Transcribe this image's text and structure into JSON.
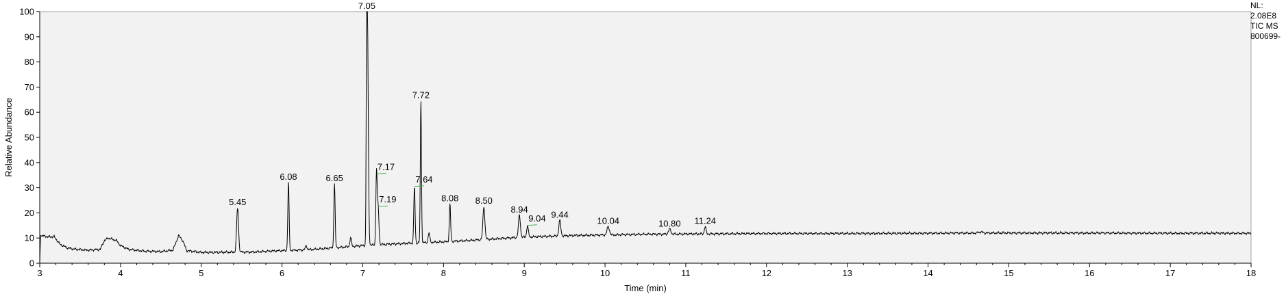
{
  "chart_data": {
    "type": "line",
    "title": "",
    "xlabel": "Time (min)",
    "ylabel": "Relative Abundance",
    "xlim": [
      3,
      18
    ],
    "ylim": [
      0,
      100
    ],
    "x_ticks": [
      3,
      4,
      5,
      6,
      7,
      8,
      9,
      10,
      11,
      12,
      13,
      14,
      15,
      16,
      17,
      18
    ],
    "y_ticks": [
      0,
      10,
      20,
      30,
      40,
      50,
      60,
      70,
      80,
      90,
      100
    ],
    "info_lines": [
      "NL:",
      "2.08E8",
      "TIC  MS",
      "800699-"
    ],
    "series": [
      {
        "name": "TIC MS",
        "color": "#000000",
        "baseline": [
          [
            3.0,
            0
          ],
          [
            3.01,
            11
          ],
          [
            3.1,
            10.5
          ],
          [
            3.18,
            10.5
          ],
          [
            3.25,
            7.5
          ],
          [
            3.35,
            6
          ],
          [
            3.45,
            5.5
          ],
          [
            3.6,
            5.2
          ],
          [
            3.75,
            5.5
          ],
          [
            3.8,
            9
          ],
          [
            3.85,
            10
          ],
          [
            3.95,
            9
          ],
          [
            4.0,
            7
          ],
          [
            4.1,
            5.5
          ],
          [
            4.3,
            4.8
          ],
          [
            4.5,
            4.6
          ],
          [
            4.65,
            5.2
          ],
          [
            4.72,
            11
          ],
          [
            4.77,
            9
          ],
          [
            4.82,
            5
          ],
          [
            5.0,
            4.3
          ],
          [
            5.2,
            4.3
          ],
          [
            5.4,
            4.4
          ],
          [
            5.6,
            4.4
          ],
          [
            5.8,
            4.7
          ],
          [
            6.0,
            5.0
          ],
          [
            6.2,
            5.2
          ],
          [
            6.4,
            5.5
          ],
          [
            6.6,
            6.0
          ],
          [
            6.8,
            6.5
          ],
          [
            7.0,
            7.0
          ],
          [
            7.3,
            7.5
          ],
          [
            7.6,
            8.0
          ],
          [
            7.8,
            8.2
          ],
          [
            8.0,
            8.5
          ],
          [
            8.3,
            9.0
          ],
          [
            8.6,
            9.6
          ],
          [
            8.9,
            10.2
          ],
          [
            9.2,
            10.6
          ],
          [
            9.6,
            11.0
          ],
          [
            10.0,
            11.2
          ],
          [
            10.5,
            11.5
          ],
          [
            11.0,
            11.6
          ],
          [
            12.0,
            11.8
          ],
          [
            13.0,
            11.8
          ],
          [
            14.0,
            11.9
          ],
          [
            14.6,
            12.0
          ],
          [
            14.65,
            12.5
          ],
          [
            14.7,
            12.0
          ],
          [
            15.0,
            12.0
          ],
          [
            16.0,
            12.0
          ],
          [
            17.0,
            11.9
          ],
          [
            18.0,
            11.9
          ]
        ],
        "peaks": [
          {
            "rt": 5.45,
            "height": 22,
            "width": 0.012
          },
          {
            "rt": 6.08,
            "height": 32,
            "width": 0.008
          },
          {
            "rt": 6.3,
            "height": 7,
            "width": 0.01
          },
          {
            "rt": 6.65,
            "height": 31.5,
            "width": 0.008
          },
          {
            "rt": 6.85,
            "height": 10,
            "width": 0.01
          },
          {
            "rt": 7.05,
            "height": 100,
            "width": 0.006
          },
          {
            "rt": 7.06,
            "height": 81,
            "width": 0.01
          },
          {
            "rt": 7.17,
            "height": 35.5,
            "width": 0.008
          },
          {
            "rt": 7.19,
            "height": 22.5,
            "width": 0.01
          },
          {
            "rt": 7.64,
            "height": 30.5,
            "width": 0.008
          },
          {
            "rt": 7.72,
            "height": 64.5,
            "width": 0.007
          },
          {
            "rt": 7.82,
            "height": 12,
            "width": 0.01
          },
          {
            "rt": 8.08,
            "height": 23.5,
            "width": 0.008
          },
          {
            "rt": 8.5,
            "height": 22.5,
            "width": 0.012
          },
          {
            "rt": 8.94,
            "height": 19,
            "width": 0.012
          },
          {
            "rt": 9.04,
            "height": 15,
            "width": 0.01
          },
          {
            "rt": 9.44,
            "height": 17,
            "width": 0.012
          },
          {
            "rt": 10.04,
            "height": 14.5,
            "width": 0.015
          },
          {
            "rt": 10.8,
            "height": 13.5,
            "width": 0.015
          },
          {
            "rt": 11.24,
            "height": 14.5,
            "width": 0.01
          }
        ]
      }
    ],
    "peak_labels": [
      {
        "text": "5.45",
        "rt": 5.45,
        "y": 22
      },
      {
        "text": "6.08",
        "rt": 6.08,
        "y": 32
      },
      {
        "text": "6.65",
        "rt": 6.65,
        "y": 31.5
      },
      {
        "text": "7.05",
        "rt": 7.05,
        "y": 100
      },
      {
        "text": "7.17",
        "rt": 7.17,
        "y": 35.5,
        "leader": true
      },
      {
        "text": "7.19",
        "rt": 7.19,
        "y": 22.5,
        "leader": true
      },
      {
        "text": "7.64",
        "rt": 7.64,
        "y": 30.5,
        "leader": true
      },
      {
        "text": "7.72",
        "rt": 7.72,
        "y": 64.5
      },
      {
        "text": "8.08",
        "rt": 8.08,
        "y": 23.5
      },
      {
        "text": "8.50",
        "rt": 8.5,
        "y": 22.5
      },
      {
        "text": "8.94",
        "rt": 8.94,
        "y": 19
      },
      {
        "text": "9.04",
        "rt": 9.04,
        "y": 15,
        "leader": true
      },
      {
        "text": "9.44",
        "rt": 9.44,
        "y": 17
      },
      {
        "text": "10.04",
        "rt": 10.04,
        "y": 14.5
      },
      {
        "text": "10.80",
        "rt": 10.8,
        "y": 13.5
      },
      {
        "text": "11.24",
        "rt": 11.24,
        "y": 14.5
      }
    ]
  }
}
